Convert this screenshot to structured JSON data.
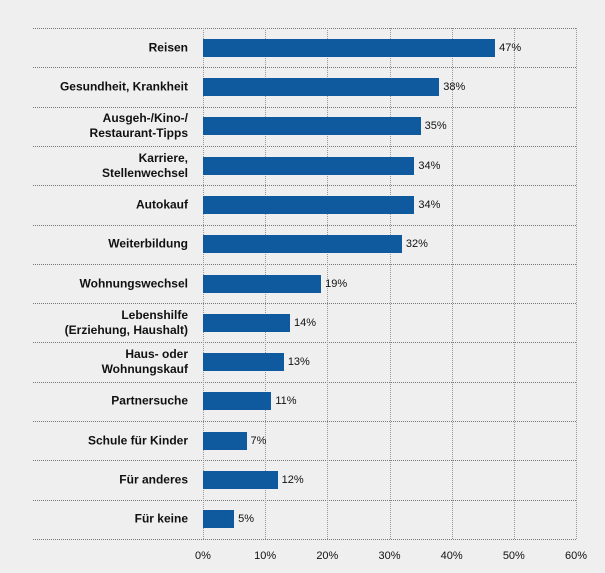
{
  "chart_data": {
    "type": "bar",
    "orientation": "horizontal",
    "categories": [
      "Reisen",
      "Gesundheit, Krankheit",
      "Ausgeh-/Kino-/\nRestaurant-Tipps",
      "Karriere,\nStellenwechsel",
      "Autokauf",
      "Weiterbildung",
      "Wohnungswechsel",
      "Lebenshilfe\n(Erziehung, Haushalt)",
      "Haus- oder\nWohnungskauf",
      "Partnersuche",
      "Schule für Kinder",
      "Für anderes",
      "Für keine"
    ],
    "values": [
      47,
      38,
      35,
      34,
      34,
      32,
      19,
      14,
      13,
      11,
      7,
      12,
      5
    ],
    "value_labels": [
      "47%",
      "38%",
      "35%",
      "34%",
      "34%",
      "32%",
      "19%",
      "14%",
      "13%",
      "11%",
      "7%",
      "12%",
      "5%"
    ],
    "color": "#0f5a9e",
    "xlim": [
      0,
      60
    ],
    "xticks": [
      {
        "value": 0,
        "label": "0%"
      },
      {
        "value": 10,
        "label": "10%"
      },
      {
        "value": 20,
        "label": "20%"
      },
      {
        "value": 30,
        "label": "30%"
      },
      {
        "value": 40,
        "label": "40%"
      },
      {
        "value": 50,
        "label": "50%"
      },
      {
        "value": 60,
        "label": "60%"
      }
    ],
    "grid": true
  }
}
